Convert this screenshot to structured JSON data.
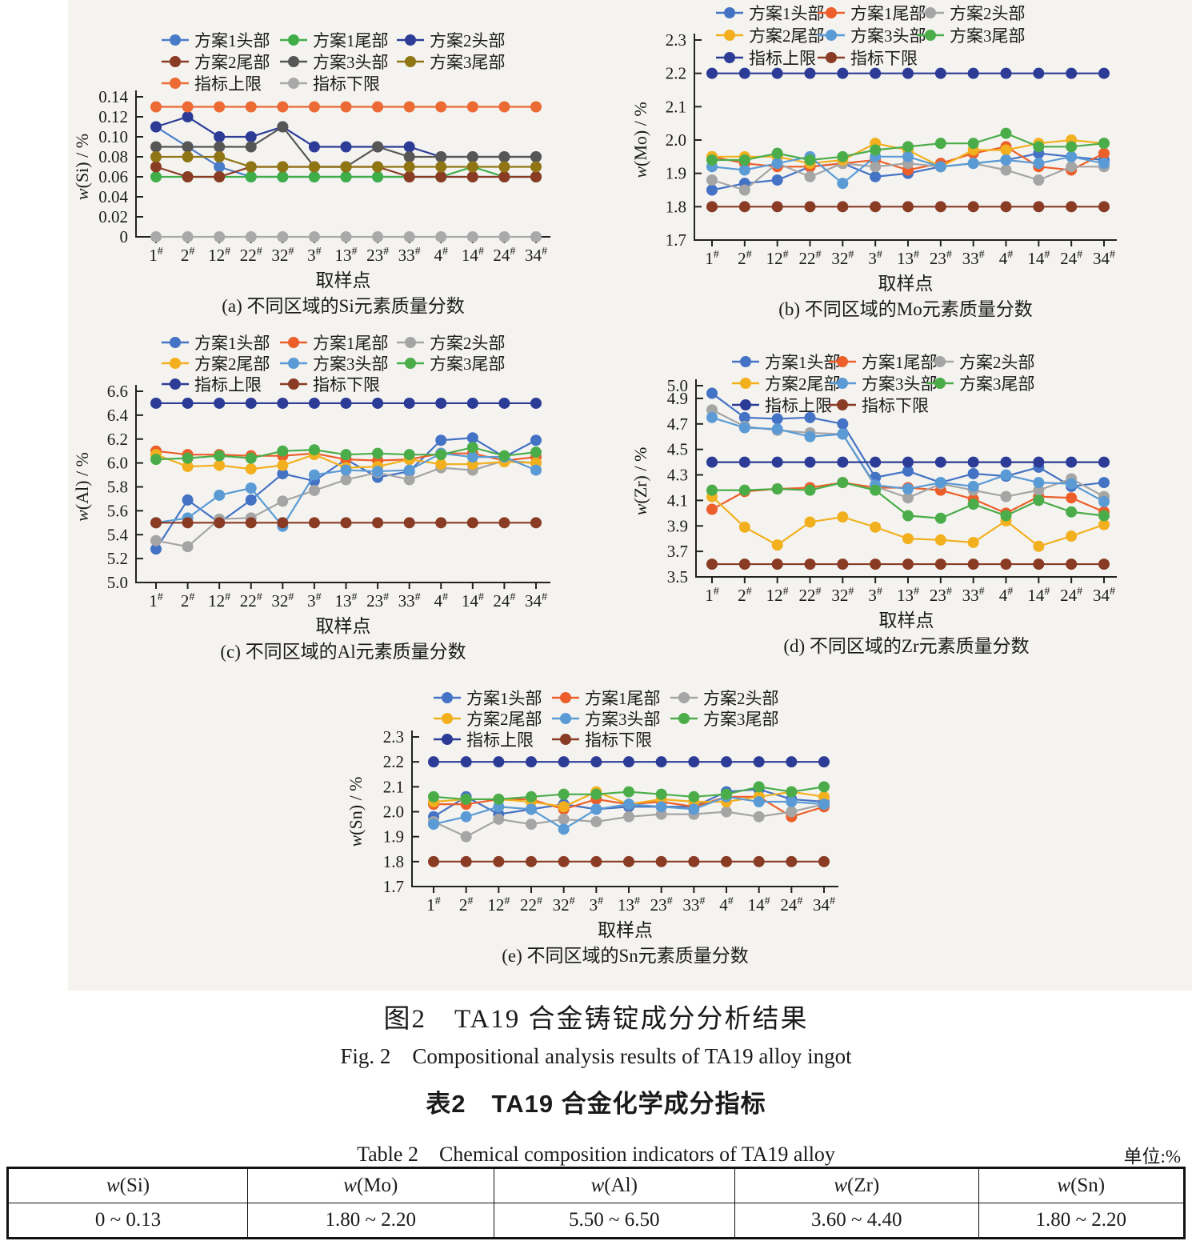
{
  "figure": {
    "caption_zh": "图2　TA19 合金铸锭成分分析结果",
    "caption_en": "Fig. 2　Compositional analysis results of TA19 alloy ingot"
  },
  "table": {
    "title_zh": "表2　TA19 合金化学成分指标",
    "caption_en": "Table 2　Chemical composition indicators of TA19 alloy",
    "unit_label": "单位:%",
    "headers": [
      "w(Si)",
      "w(Mo)",
      "w(Al)",
      "w(Zr)",
      "w(Sn)"
    ],
    "values": [
      "0 ~ 0.13",
      "1.80 ~ 2.20",
      "5.50 ~ 6.50",
      "3.60 ~ 4.40",
      "1.80 ~ 2.20"
    ]
  },
  "chart_data": [
    {
      "id": "a",
      "type": "line",
      "title": "(a) 不同区域的Si元素质量分数",
      "xlabel": "取样点",
      "ylabel": "w(Si) / %",
      "legend_position": "top",
      "categories": [
        "1#",
        "2#",
        "12#",
        "22#",
        "32#",
        "3#",
        "13#",
        "23#",
        "33#",
        "4#",
        "14#",
        "24#",
        "34#"
      ],
      "ylim": [
        0,
        0.14
      ],
      "yticks": [
        [
          0,
          "0"
        ],
        [
          0.02,
          "0.02"
        ],
        [
          0.04,
          "0.04"
        ],
        [
          0.06,
          "0.06"
        ],
        [
          0.08,
          "0.08"
        ],
        [
          0.1,
          "0.10"
        ],
        [
          0.12,
          "0.12"
        ],
        [
          0.14,
          "0.14"
        ]
      ],
      "series": [
        {
          "name": "方案1头部",
          "color": "#4a7bc8",
          "values": [
            0.11,
            0.09,
            0.07,
            0.06,
            0.06,
            0.06,
            0.06,
            0.06,
            0.06,
            0.06,
            0.06,
            0.06,
            0.06
          ]
        },
        {
          "name": "方案1尾部",
          "color": "#3fae49",
          "values": [
            0.06,
            0.06,
            0.06,
            0.06,
            0.06,
            0.06,
            0.06,
            0.06,
            0.06,
            0.06,
            0.07,
            0.06,
            0.06
          ]
        },
        {
          "name": "方案2头部",
          "color": "#2c3c96",
          "values": [
            0.11,
            0.12,
            0.1,
            0.1,
            0.11,
            0.09,
            0.09,
            0.09,
            0.09,
            0.08,
            0.08,
            0.08,
            0.08
          ]
        },
        {
          "name": "方案2尾部",
          "color": "#8a3b24",
          "values": [
            0.07,
            0.06,
            0.06,
            0.07,
            0.07,
            0.07,
            0.07,
            0.07,
            0.06,
            0.06,
            0.06,
            0.06,
            0.06
          ]
        },
        {
          "name": "方案3头部",
          "color": "#565656",
          "values": [
            0.09,
            0.09,
            0.09,
            0.09,
            0.11,
            0.07,
            0.07,
            0.09,
            0.08,
            0.08,
            0.08,
            0.08,
            0.08
          ]
        },
        {
          "name": "方案3尾部",
          "color": "#8f7514",
          "values": [
            0.08,
            0.08,
            0.08,
            0.07,
            0.07,
            0.07,
            0.07,
            0.07,
            0.07,
            0.07,
            0.07,
            0.07,
            0.07
          ]
        },
        {
          "name": "指标上限",
          "color": "#ec6a33",
          "values": [
            0.13,
            0.13,
            0.13,
            0.13,
            0.13,
            0.13,
            0.13,
            0.13,
            0.13,
            0.13,
            0.13,
            0.13,
            0.13
          ]
        },
        {
          "name": "指标下限",
          "color": "#a9a9a9",
          "values": [
            0,
            0,
            0,
            0,
            0,
            0,
            0,
            0,
            0,
            0,
            0,
            0,
            0
          ]
        }
      ]
    },
    {
      "id": "b",
      "type": "line",
      "title": "(b) 不同区域的Mo元素质量分数",
      "xlabel": "取样点",
      "ylabel": "w(Mo) / %",
      "legend_position": "top",
      "categories": [
        "1#",
        "2#",
        "12#",
        "22#",
        "32#",
        "3#",
        "13#",
        "23#",
        "33#",
        "4#",
        "14#",
        "24#",
        "34#"
      ],
      "ylim": [
        1.7,
        2.3
      ],
      "yticks": [
        [
          1.7,
          "1.7"
        ],
        [
          1.8,
          "1.8"
        ],
        [
          1.9,
          "1.9"
        ],
        [
          2.0,
          "2.0"
        ],
        [
          2.1,
          "2.1"
        ],
        [
          2.2,
          "2.2"
        ],
        [
          2.3,
          "2.3"
        ]
      ],
      "series": [
        {
          "name": "方案1头部",
          "color": "#4472c4",
          "values": [
            1.85,
            1.87,
            1.88,
            1.92,
            1.93,
            1.89,
            1.9,
            1.92,
            1.93,
            1.94,
            1.96,
            1.95,
            1.94
          ]
        },
        {
          "name": "方案1尾部",
          "color": "#ec5f2a",
          "values": [
            1.95,
            1.93,
            1.92,
            1.92,
            1.93,
            1.94,
            1.91,
            1.93,
            1.96,
            1.98,
            1.92,
            1.91,
            1.96
          ]
        },
        {
          "name": "方案2头部",
          "color": "#a5a5a5",
          "values": [
            1.88,
            1.85,
            1.93,
            1.89,
            1.93,
            1.92,
            1.93,
            1.92,
            1.93,
            1.91,
            1.88,
            1.92,
            1.92
          ]
        },
        {
          "name": "方案2尾部",
          "color": "#f2b01e",
          "values": [
            1.95,
            1.95,
            1.95,
            1.93,
            1.94,
            1.99,
            1.97,
            1.92,
            1.97,
            1.97,
            1.99,
            2.0,
            1.99
          ]
        },
        {
          "name": "方案3头部",
          "color": "#5b9bd5",
          "values": [
            1.92,
            1.91,
            1.93,
            1.95,
            1.87,
            1.95,
            1.95,
            1.92,
            1.93,
            1.94,
            1.93,
            1.95,
            1.93
          ]
        },
        {
          "name": "方案3尾部",
          "color": "#4bad4a",
          "values": [
            1.94,
            1.94,
            1.96,
            1.94,
            1.95,
            1.97,
            1.98,
            1.99,
            1.99,
            2.02,
            1.98,
            1.98,
            1.99
          ]
        },
        {
          "name": "指标上限",
          "color": "#2c3c96",
          "values": [
            2.2,
            2.2,
            2.2,
            2.2,
            2.2,
            2.2,
            2.2,
            2.2,
            2.2,
            2.2,
            2.2,
            2.2,
            2.2
          ]
        },
        {
          "name": "指标下限",
          "color": "#8a3b24",
          "values": [
            1.8,
            1.8,
            1.8,
            1.8,
            1.8,
            1.8,
            1.8,
            1.8,
            1.8,
            1.8,
            1.8,
            1.8,
            1.8
          ]
        }
      ]
    },
    {
      "id": "c",
      "type": "line",
      "title": "(c) 不同区域的Al元素质量分数",
      "xlabel": "取样点",
      "ylabel": "w(Al) / %",
      "legend_position": "top",
      "categories": [
        "1#",
        "2#",
        "12#",
        "22#",
        "32#",
        "3#",
        "13#",
        "23#",
        "33#",
        "4#",
        "14#",
        "24#",
        "34#"
      ],
      "ylim": [
        5.0,
        6.6
      ],
      "yticks": [
        [
          5.0,
          "5.0"
        ],
        [
          5.2,
          "5.2"
        ],
        [
          5.4,
          "5.4"
        ],
        [
          5.6,
          "5.6"
        ],
        [
          5.8,
          "5.8"
        ],
        [
          6.0,
          "6.0"
        ],
        [
          6.2,
          "6.2"
        ],
        [
          6.4,
          "6.4"
        ],
        [
          6.6,
          "6.6"
        ]
      ],
      "series": [
        {
          "name": "方案1头部",
          "color": "#4472c4",
          "values": [
            5.28,
            5.69,
            5.5,
            5.69,
            5.91,
            5.85,
            6.03,
            5.88,
            5.93,
            6.19,
            6.21,
            6.05,
            6.19
          ]
        },
        {
          "name": "方案1尾部",
          "color": "#ec5f2a",
          "values": [
            6.1,
            6.07,
            6.07,
            6.06,
            6.06,
            6.08,
            6.03,
            6.02,
            6.03,
            6.08,
            6.08,
            6.02,
            6.05
          ]
        },
        {
          "name": "方案2头部",
          "color": "#a5a5a5",
          "values": [
            5.35,
            5.3,
            5.53,
            5.54,
            5.68,
            5.77,
            5.86,
            5.92,
            5.86,
            5.96,
            5.94,
            6.02,
            6.0
          ]
        },
        {
          "name": "方案2尾部",
          "color": "#f2b01e",
          "values": [
            6.07,
            5.97,
            5.98,
            5.95,
            5.98,
            6.07,
            5.96,
            5.97,
            6.03,
            5.99,
            5.99,
            6.01,
            6.0
          ]
        },
        {
          "name": "方案3头部",
          "color": "#5b9bd5",
          "values": [
            5.5,
            5.54,
            5.73,
            5.79,
            5.47,
            5.9,
            5.94,
            5.93,
            5.94,
            6.08,
            6.05,
            6.05,
            5.94
          ]
        },
        {
          "name": "方案3尾部",
          "color": "#4bad4a",
          "values": [
            6.03,
            6.04,
            6.06,
            6.04,
            6.1,
            6.11,
            6.07,
            6.08,
            6.07,
            6.07,
            6.13,
            6.06,
            6.09
          ]
        },
        {
          "name": "指标上限",
          "color": "#2c3c96",
          "values": [
            6.5,
            6.5,
            6.5,
            6.5,
            6.5,
            6.5,
            6.5,
            6.5,
            6.5,
            6.5,
            6.5,
            6.5,
            6.5
          ]
        },
        {
          "name": "指标下限",
          "color": "#8a3b24",
          "values": [
            5.5,
            5.5,
            5.5,
            5.5,
            5.5,
            5.5,
            5.5,
            5.5,
            5.5,
            5.5,
            5.5,
            5.5,
            5.5
          ]
        }
      ]
    },
    {
      "id": "d",
      "type": "line",
      "title": "(d) 不同区域的Zr元素质量分数",
      "xlabel": "取样点",
      "ylabel": "w(Zr) / %",
      "legend_position": "top",
      "categories": [
        "1#",
        "2#",
        "12#",
        "22#",
        "32#",
        "3#",
        "13#",
        "23#",
        "33#",
        "4#",
        "14#",
        "24#",
        "34#"
      ],
      "ylim": [
        3.5,
        5.0
      ],
      "yticks": [
        [
          3.5,
          "3.5"
        ],
        [
          3.7,
          "3.7"
        ],
        [
          3.9,
          "3.9"
        ],
        [
          4.1,
          "4.1"
        ],
        [
          4.3,
          "4.3"
        ],
        [
          4.5,
          "4.5"
        ],
        [
          4.7,
          "4.7"
        ],
        [
          4.9,
          "4.9"
        ],
        [
          5.0,
          "5.0"
        ]
      ],
      "series": [
        {
          "name": "方案1头部",
          "color": "#4472c4",
          "values": [
            4.94,
            4.75,
            4.74,
            4.75,
            4.7,
            4.28,
            4.33,
            4.24,
            4.31,
            4.29,
            4.36,
            4.21,
            4.24
          ]
        },
        {
          "name": "方案1尾部",
          "color": "#ec5f2a",
          "values": [
            4.03,
            4.17,
            4.19,
            4.2,
            4.24,
            4.2,
            4.2,
            4.18,
            4.11,
            4.0,
            4.13,
            4.12,
            4.01
          ]
        },
        {
          "name": "方案2头部",
          "color": "#a5a5a5",
          "values": [
            4.81,
            4.68,
            4.65,
            4.63,
            4.62,
            4.21,
            4.12,
            4.23,
            4.18,
            4.13,
            4.18,
            4.27,
            4.13
          ]
        },
        {
          "name": "方案2尾部",
          "color": "#f2b01e",
          "values": [
            4.13,
            3.89,
            3.75,
            3.93,
            3.97,
            3.89,
            3.8,
            3.79,
            3.77,
            3.94,
            3.74,
            3.82,
            3.91
          ]
        },
        {
          "name": "方案3头部",
          "color": "#5b9bd5",
          "values": [
            4.75,
            4.67,
            4.66,
            4.6,
            4.62,
            4.22,
            4.19,
            4.24,
            4.21,
            4.3,
            4.24,
            4.23,
            4.09
          ]
        },
        {
          "name": "方案3尾部",
          "color": "#4bad4a",
          "values": [
            4.18,
            4.18,
            4.19,
            4.18,
            4.24,
            4.18,
            3.98,
            3.96,
            4.07,
            3.98,
            4.1,
            4.01,
            3.98
          ]
        },
        {
          "name": "指标上限",
          "color": "#2c3c96",
          "values": [
            4.4,
            4.4,
            4.4,
            4.4,
            4.4,
            4.4,
            4.4,
            4.4,
            4.4,
            4.4,
            4.4,
            4.4,
            4.4
          ]
        },
        {
          "name": "指标下限",
          "color": "#8a3b24",
          "values": [
            3.6,
            3.6,
            3.6,
            3.6,
            3.6,
            3.6,
            3.6,
            3.6,
            3.6,
            3.6,
            3.6,
            3.6,
            3.6
          ]
        }
      ]
    },
    {
      "id": "e",
      "type": "line",
      "title": "(e) 不同区域的Sn元素质量分数",
      "xlabel": "取样点",
      "ylabel": "w(Sn) / %",
      "legend_position": "top",
      "categories": [
        "1#",
        "2#",
        "12#",
        "22#",
        "32#",
        "3#",
        "13#",
        "23#",
        "33#",
        "4#",
        "14#",
        "24#",
        "34#"
      ],
      "ylim": [
        1.7,
        2.3
      ],
      "yticks": [
        [
          1.7,
          "1.7"
        ],
        [
          1.8,
          "1.8"
        ],
        [
          1.9,
          "1.9"
        ],
        [
          2.0,
          "2.0"
        ],
        [
          2.1,
          "2.1"
        ],
        [
          2.2,
          "2.2"
        ],
        [
          2.3,
          "2.3"
        ]
      ],
      "series": [
        {
          "name": "方案1头部",
          "color": "#4472c4",
          "values": [
            1.98,
            2.06,
            1.99,
            2.01,
            2.03,
            2.01,
            2.02,
            2.02,
            2.02,
            2.08,
            2.09,
            2.05,
            2.04
          ]
        },
        {
          "name": "方案1尾部",
          "color": "#ec5f2a",
          "values": [
            2.03,
            2.03,
            2.05,
            2.05,
            2.01,
            2.05,
            2.03,
            2.04,
            2.02,
            2.06,
            2.06,
            1.98,
            2.02
          ]
        },
        {
          "name": "方案2头部",
          "color": "#a5a5a5",
          "values": [
            1.96,
            1.9,
            1.97,
            1.95,
            1.97,
            1.96,
            1.98,
            1.99,
            1.99,
            2.0,
            1.98,
            2.0,
            2.03
          ]
        },
        {
          "name": "方案2尾部",
          "color": "#f2b01e",
          "values": [
            2.04,
            2.05,
            2.05,
            2.04,
            2.02,
            2.08,
            2.03,
            2.05,
            2.04,
            2.04,
            2.06,
            2.08,
            2.06
          ]
        },
        {
          "name": "方案3头部",
          "color": "#5b9bd5",
          "values": [
            1.95,
            1.98,
            2.02,
            2.01,
            1.93,
            2.01,
            2.03,
            2.02,
            2.01,
            2.06,
            2.04,
            2.04,
            2.03
          ]
        },
        {
          "name": "方案3尾部",
          "color": "#4bad4a",
          "values": [
            2.06,
            2.05,
            2.05,
            2.06,
            2.07,
            2.07,
            2.08,
            2.07,
            2.06,
            2.07,
            2.1,
            2.08,
            2.1
          ]
        },
        {
          "name": "指标上限",
          "color": "#2c3c96",
          "values": [
            2.2,
            2.2,
            2.2,
            2.2,
            2.2,
            2.2,
            2.2,
            2.2,
            2.2,
            2.2,
            2.2,
            2.2,
            2.2
          ]
        },
        {
          "name": "指标下限",
          "color": "#8a3b24",
          "values": [
            1.8,
            1.8,
            1.8,
            1.8,
            1.8,
            1.8,
            1.8,
            1.8,
            1.8,
            1.8,
            1.8,
            1.8,
            1.8
          ]
        }
      ]
    }
  ]
}
